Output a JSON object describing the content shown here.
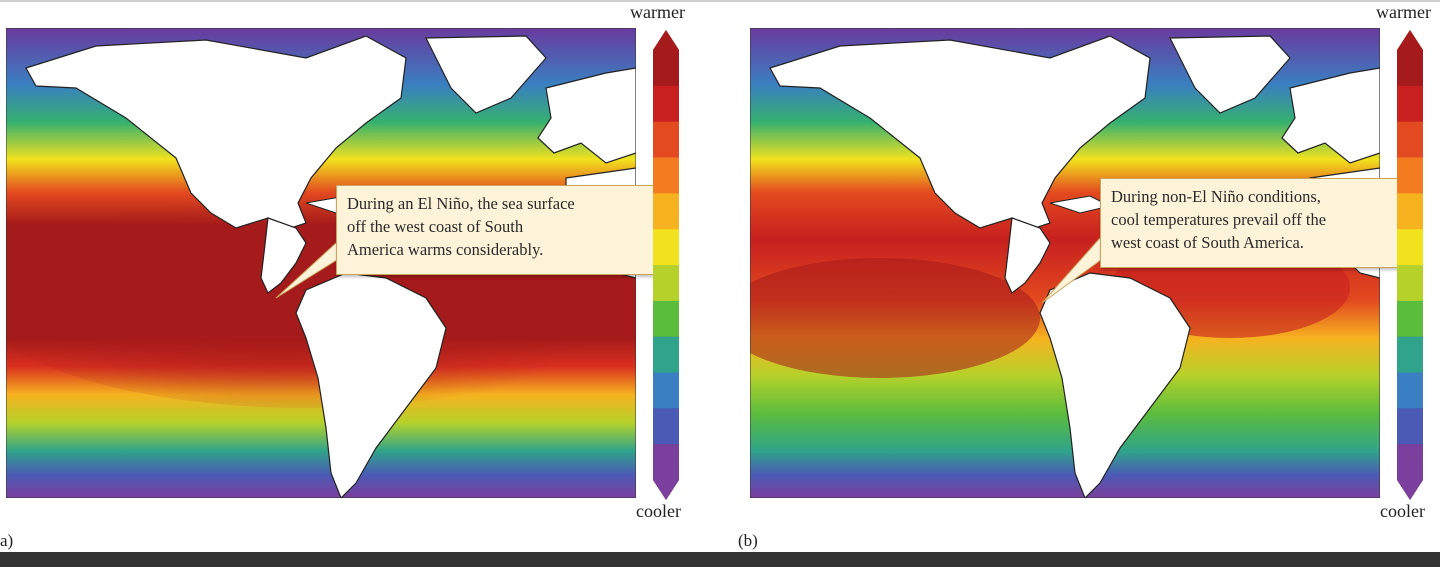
{
  "panels": [
    {
      "letter": "a)",
      "callout_lines": [
        "During an El Niño, the sea surface",
        "off the west coast of South",
        "America warms considerably."
      ],
      "scale_top": "warmer",
      "scale_bottom": "cooler"
    },
    {
      "letter": "(b)",
      "callout_lines": [
        "During non-El Niño conditions,",
        "cool temperatures prevail off the",
        "west coast of South America."
      ],
      "scale_top": "warmer",
      "scale_bottom": "cooler"
    }
  ],
  "colors": {
    "land": "#ffffff",
    "coastline": "#222222",
    "scale": [
      "#7b3f9e",
      "#4b5bb5",
      "#3a7fc1",
      "#2fa48a",
      "#5bbd3c",
      "#b5d12a",
      "#f2e21e",
      "#f7b21f",
      "#f27c1f",
      "#e34a1f",
      "#c7201f",
      "#a51a1a"
    ],
    "callout_fill": "#fdf3d8",
    "callout_border": "#c9a45a",
    "footer": "#333333"
  }
}
